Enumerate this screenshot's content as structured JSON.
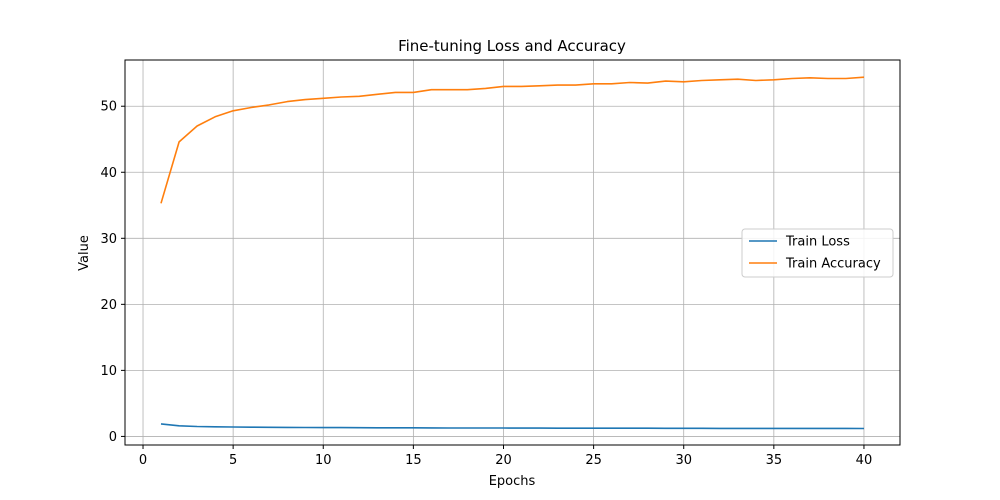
{
  "chart_data": {
    "type": "line",
    "title": "Fine-tuning Loss and Accuracy",
    "xlabel": "Epochs",
    "ylabel": "Value",
    "xlim": [
      -1,
      42
    ],
    "ylim": [
      -1.3,
      57
    ],
    "xticks": [
      0,
      5,
      10,
      15,
      20,
      25,
      30,
      35,
      40
    ],
    "yticks": [
      0,
      10,
      20,
      30,
      40,
      50
    ],
    "grid": true,
    "legend_position": "center-right",
    "x": [
      1,
      2,
      3,
      4,
      5,
      6,
      7,
      8,
      9,
      10,
      11,
      12,
      13,
      14,
      15,
      16,
      17,
      18,
      19,
      20,
      21,
      22,
      23,
      24,
      25,
      26,
      27,
      28,
      29,
      30,
      31,
      32,
      33,
      34,
      35,
      36,
      37,
      38,
      39,
      40
    ],
    "series": [
      {
        "name": "Train Loss",
        "color": "#1f77b4",
        "values": [
          1.9,
          1.6,
          1.5,
          1.45,
          1.42,
          1.4,
          1.38,
          1.36,
          1.35,
          1.34,
          1.33,
          1.32,
          1.31,
          1.3,
          1.3,
          1.29,
          1.28,
          1.28,
          1.27,
          1.27,
          1.26,
          1.26,
          1.25,
          1.25,
          1.25,
          1.24,
          1.24,
          1.24,
          1.23,
          1.23,
          1.23,
          1.22,
          1.22,
          1.22,
          1.22,
          1.21,
          1.21,
          1.21,
          1.21,
          1.2
        ]
      },
      {
        "name": "Train Accuracy",
        "color": "#ff7f0e",
        "values": [
          35.3,
          44.6,
          47.0,
          48.4,
          49.3,
          49.8,
          50.2,
          50.7,
          51.0,
          51.2,
          51.4,
          51.5,
          51.8,
          52.1,
          52.1,
          52.5,
          52.5,
          52.5,
          52.7,
          53.0,
          53.0,
          53.1,
          53.2,
          53.2,
          53.4,
          53.4,
          53.6,
          53.5,
          53.8,
          53.7,
          53.9,
          54.0,
          54.1,
          53.9,
          54.0,
          54.2,
          54.3,
          54.2,
          54.2,
          54.4
        ]
      }
    ]
  }
}
